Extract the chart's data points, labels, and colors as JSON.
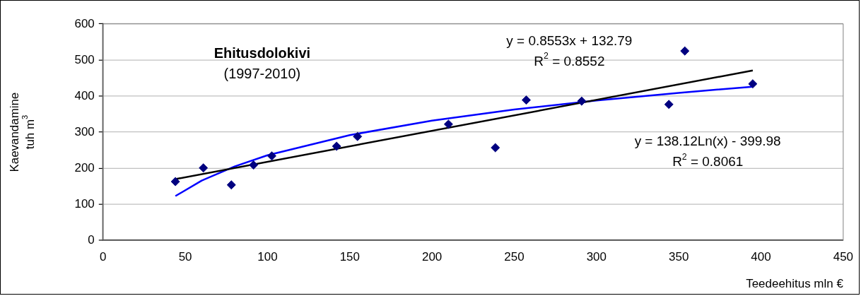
{
  "chart_data": {
    "type": "scatter",
    "title": "Ehitusdolokivi",
    "subtitle": "(1997-2010)",
    "xlabel": "Teedeehitus mln €",
    "ylabel": "Kaevandamine tuh m$^{3}$",
    "xlim": [
      0,
      450
    ],
    "xticks": [
      0,
      50,
      100,
      150,
      200,
      250,
      300,
      350,
      400,
      450
    ],
    "ylim": [
      0,
      600
    ],
    "yticks": [
      0,
      100,
      200,
      300,
      400,
      500,
      600
    ],
    "grid": "y",
    "legend": false,
    "series": [
      {
        "color": "#000080",
        "marker": "diamond",
        "x": [
          44,
          61,
          78,
          91.5,
          102.6,
          142,
          154.7,
          210,
          238.5,
          257.3,
          291,
          344,
          353.7,
          395
        ],
        "values": [
          163,
          201,
          154,
          209,
          234,
          261,
          288,
          322,
          257,
          389,
          386,
          377,
          525,
          434
        ]
      },
      {
        "type": "line",
        "color": "#000000",
        "marker": "none",
        "x": [
          44,
          395
        ],
        "values": [
          170,
          471
        ]
      },
      {
        "type": "line",
        "color": "#0000ff",
        "marker": "none",
        "x": [
          44,
          60,
          80,
          100,
          150,
          200,
          250,
          300,
          350,
          395
        ],
        "values": [
          123,
          166,
          205,
          236,
          292,
          332,
          363,
          388,
          409,
          426
        ]
      }
    ],
    "annotations": [
      "y = 0.8553x + 132.79",
      "R$^{2}$ = 0.8552",
      "y = 138.12Ln(x) - 399.98",
      "R$^{2}$ = 0.8061"
    ]
  }
}
